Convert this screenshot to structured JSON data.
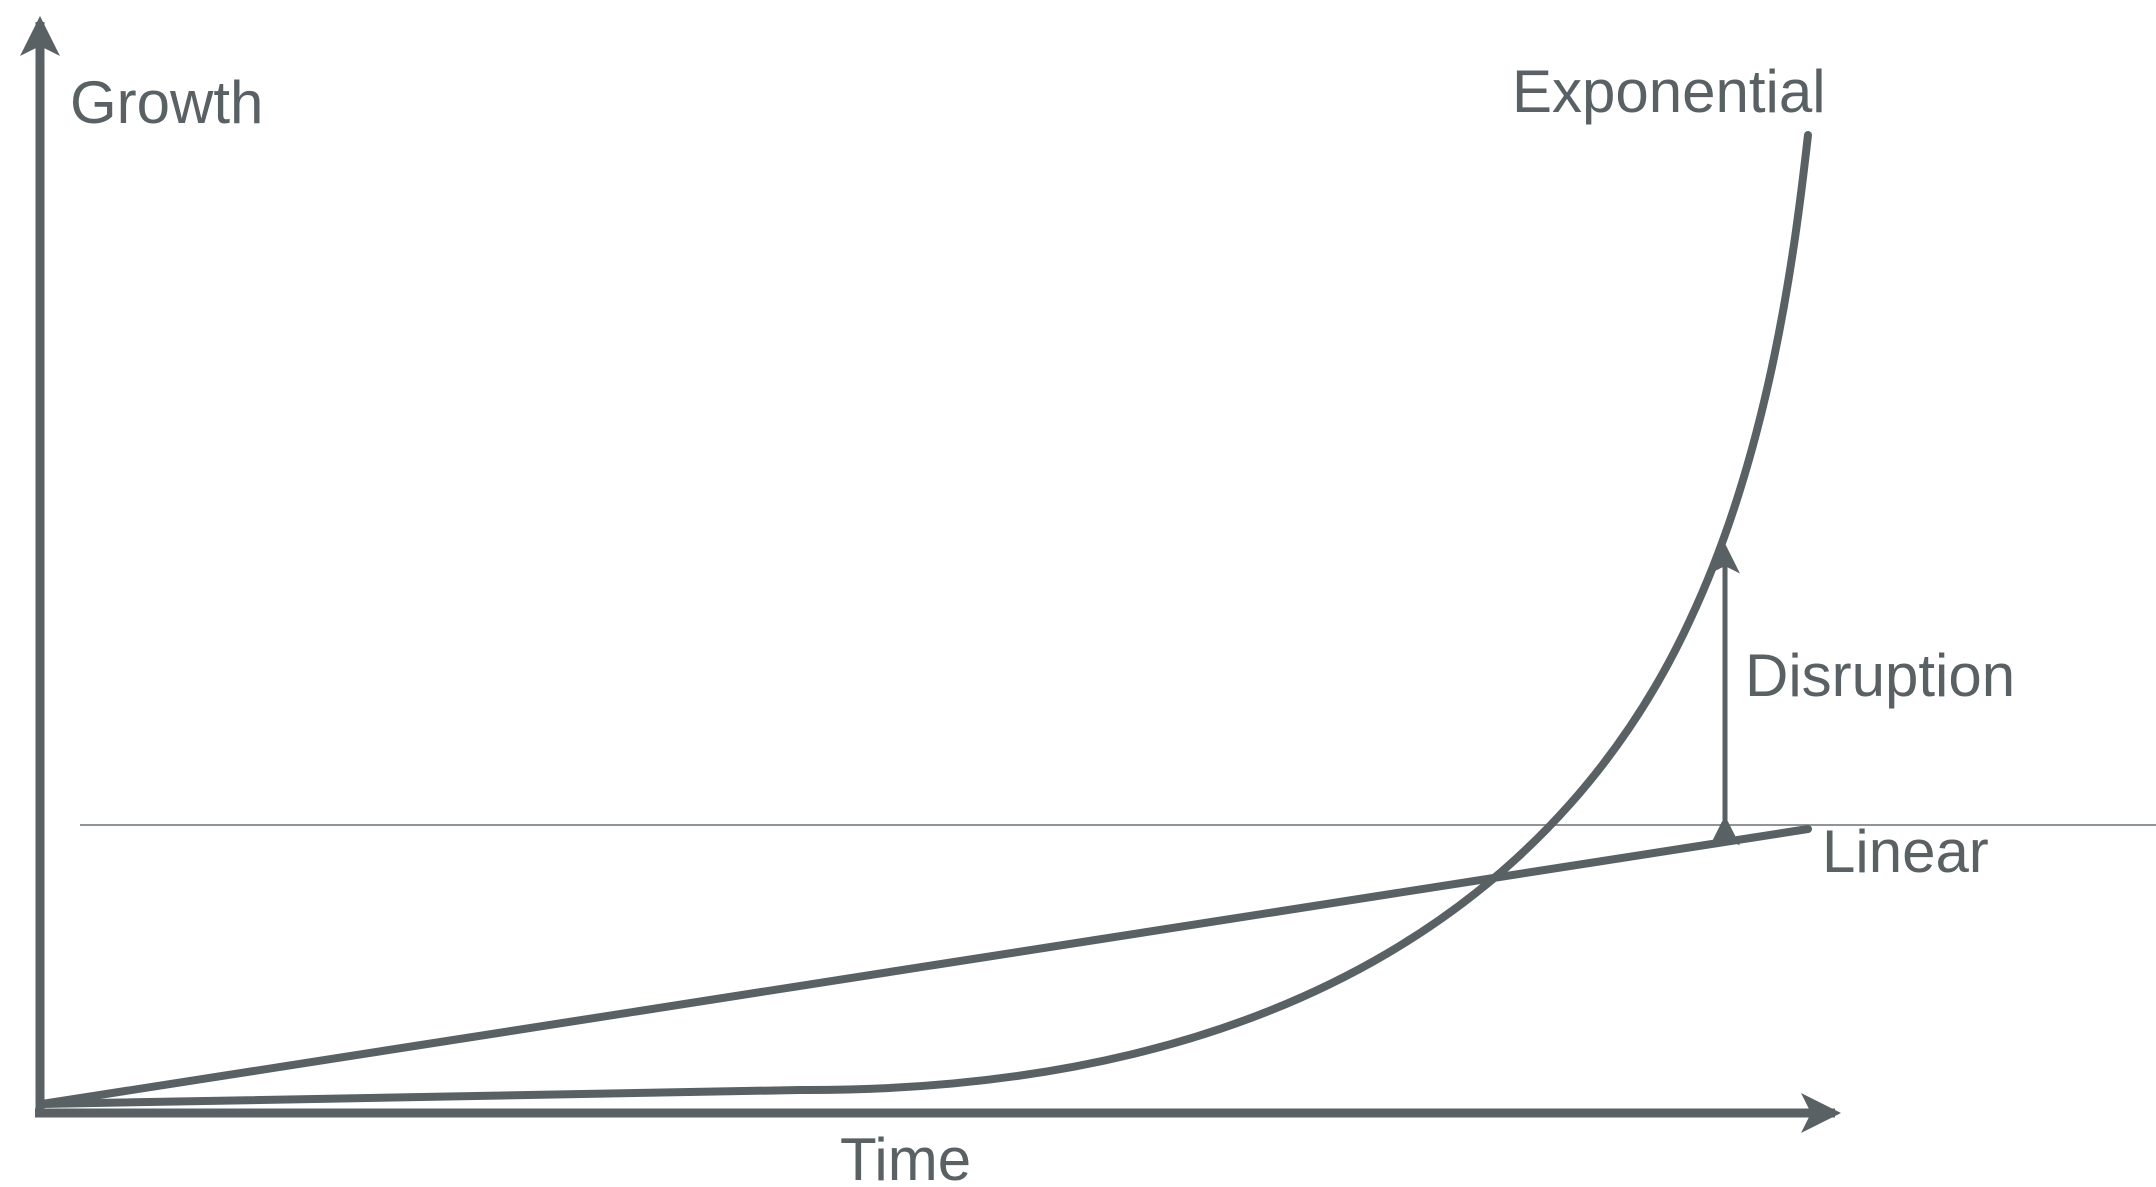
{
  "colors": {
    "stroke": "#596164",
    "reference_line": "#8e9498",
    "background": "#ffffff"
  },
  "labels": {
    "y_axis": "Growth",
    "x_axis": "Time",
    "exponential": "Exponential",
    "linear": "Linear",
    "disruption": "Disruption"
  }
}
